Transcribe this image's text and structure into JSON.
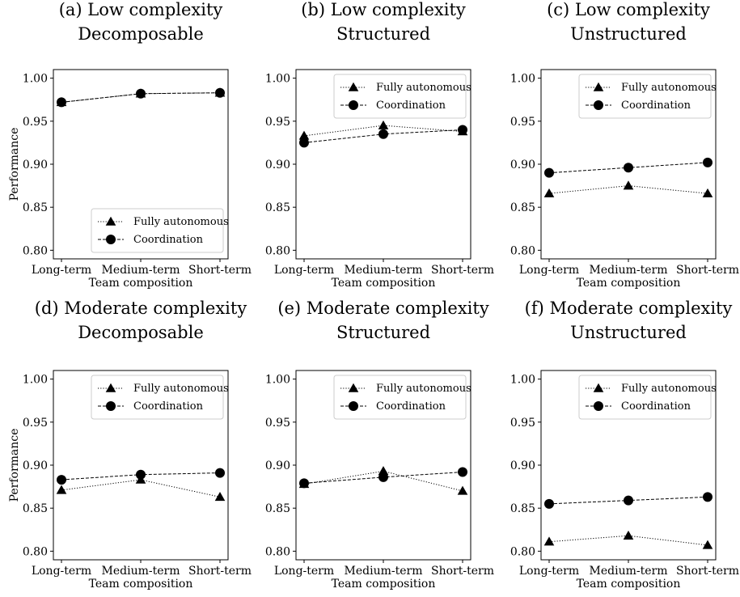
{
  "chart_data": [
    {
      "type": "line",
      "title_lines": [
        "(a) Low complexity",
        "Decomposable"
      ],
      "xlabel": "Team composition",
      "ylabel": "Performance",
      "categories": [
        "Long-term",
        "Medium-term",
        "Short-term"
      ],
      "ylim": [
        0.79,
        1.01
      ],
      "yticks": [
        "0.80",
        "0.85",
        "0.90",
        "0.95",
        "1.00"
      ],
      "legend_position": "lower-right",
      "series": [
        {
          "name": "Fully autonomous",
          "marker": "triangle",
          "line": "dotted",
          "values": [
            0.972,
            0.982,
            0.983
          ]
        },
        {
          "name": "Coordination",
          "marker": "circle",
          "line": "dashed",
          "values": [
            0.972,
            0.982,
            0.983
          ]
        }
      ]
    },
    {
      "type": "line",
      "title_lines": [
        "(b) Low complexity",
        "Structured"
      ],
      "xlabel": "Team composition",
      "ylabel": "",
      "categories": [
        "Long-term",
        "Medium-term",
        "Short-term"
      ],
      "ylim": [
        0.79,
        1.01
      ],
      "yticks": [
        "0.80",
        "0.85",
        "0.90",
        "0.95",
        "1.00"
      ],
      "legend_position": "upper-right",
      "series": [
        {
          "name": "Fully autonomous",
          "marker": "triangle",
          "line": "dotted",
          "values": [
            0.933,
            0.945,
            0.938
          ]
        },
        {
          "name": "Coordination",
          "marker": "circle",
          "line": "dashed",
          "values": [
            0.925,
            0.935,
            0.94
          ]
        }
      ]
    },
    {
      "type": "line",
      "title_lines": [
        "(c) Low complexity",
        "Unstructured"
      ],
      "xlabel": "Team composition",
      "ylabel": "",
      "categories": [
        "Long-term",
        "Medium-term",
        "Short-term"
      ],
      "ylim": [
        0.79,
        1.01
      ],
      "yticks": [
        "0.80",
        "0.85",
        "0.90",
        "0.95",
        "1.00"
      ],
      "legend_position": "upper-right",
      "series": [
        {
          "name": "Fully autonomous",
          "marker": "triangle",
          "line": "dotted",
          "values": [
            0.866,
            0.875,
            0.866
          ]
        },
        {
          "name": "Coordination",
          "marker": "circle",
          "line": "dashed",
          "values": [
            0.89,
            0.896,
            0.902
          ]
        }
      ]
    },
    {
      "type": "line",
      "title_lines": [
        "(d) Moderate complexity",
        "Decomposable"
      ],
      "xlabel": "Team composition",
      "ylabel": "Performance",
      "categories": [
        "Long-term",
        "Medium-term",
        "Short-term"
      ],
      "ylim": [
        0.79,
        1.01
      ],
      "yticks": [
        "0.80",
        "0.85",
        "0.90",
        "0.95",
        "1.00"
      ],
      "legend_position": "upper-right",
      "series": [
        {
          "name": "Fully autonomous",
          "marker": "triangle",
          "line": "dotted",
          "values": [
            0.871,
            0.883,
            0.863
          ]
        },
        {
          "name": "Coordination",
          "marker": "circle",
          "line": "dashed",
          "values": [
            0.883,
            0.889,
            0.891
          ]
        }
      ]
    },
    {
      "type": "line",
      "title_lines": [
        "(e) Moderate complexity",
        "Structured"
      ],
      "xlabel": "Team composition",
      "ylabel": "",
      "categories": [
        "Long-term",
        "Medium-term",
        "Short-term"
      ],
      "ylim": [
        0.79,
        1.01
      ],
      "yticks": [
        "0.80",
        "0.85",
        "0.90",
        "0.95",
        "1.00"
      ],
      "legend_position": "upper-right",
      "series": [
        {
          "name": "Fully autonomous",
          "marker": "triangle",
          "line": "dotted",
          "values": [
            0.878,
            0.893,
            0.87
          ]
        },
        {
          "name": "Coordination",
          "marker": "circle",
          "line": "dashed",
          "values": [
            0.879,
            0.886,
            0.892
          ]
        }
      ]
    },
    {
      "type": "line",
      "title_lines": [
        "(f) Moderate complexity",
        "Unstructured"
      ],
      "xlabel": "Team composition",
      "ylabel": "",
      "categories": [
        "Long-term",
        "Medium-term",
        "Short-term"
      ],
      "ylim": [
        0.79,
        1.01
      ],
      "yticks": [
        "0.80",
        "0.85",
        "0.90",
        "0.95",
        "1.00"
      ],
      "legend_position": "upper-right",
      "series": [
        {
          "name": "Fully autonomous",
          "marker": "triangle",
          "line": "dotted",
          "values": [
            0.811,
            0.818,
            0.807
          ]
        },
        {
          "name": "Coordination",
          "marker": "circle",
          "line": "dashed",
          "values": [
            0.855,
            0.859,
            0.863
          ]
        }
      ]
    }
  ]
}
